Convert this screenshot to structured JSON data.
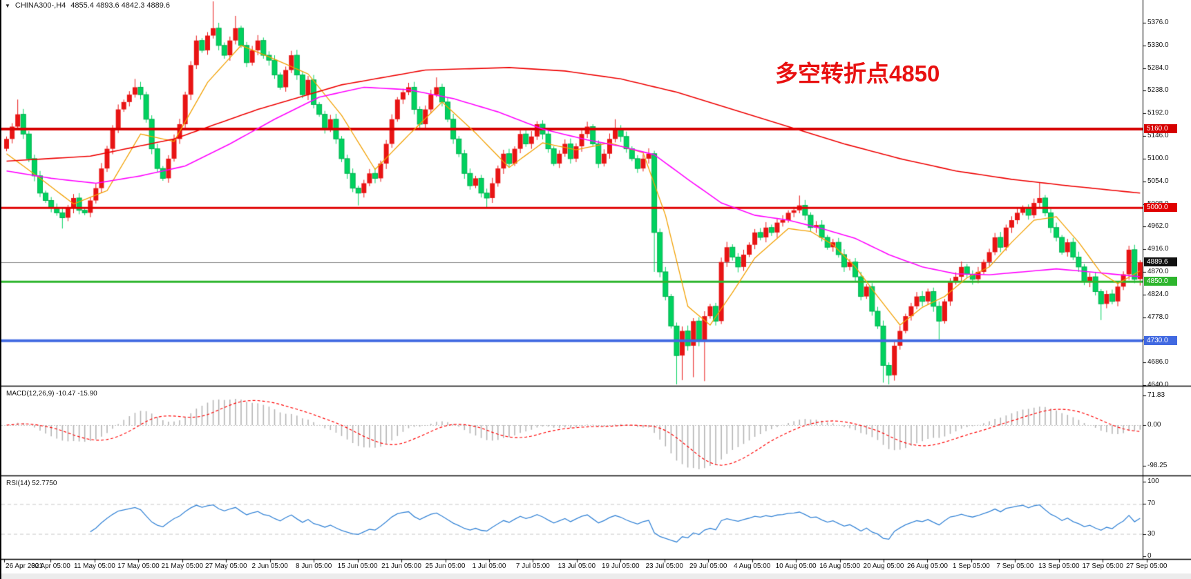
{
  "window": {
    "dropdown_icon": "▼",
    "symbol_header": "CHINA300-,H4",
    "ohlc_header": "4855.4 4893.6 4842.3 4889.6"
  },
  "annotation": {
    "text": "多空转折点4850",
    "color": "#e81010"
  },
  "main_chart": {
    "price_ticks": [
      "5376.0",
      "5330.0",
      "5284.0",
      "5238.0",
      "5192.0",
      "5146.0",
      "5100.0",
      "5054.0",
      "5008.0",
      "4962.0",
      "4916.0",
      "4870.0",
      "4824.0",
      "4778.0",
      "4732.0",
      "4686.0",
      "4640.0"
    ],
    "hlines": [
      {
        "label": "5160.0",
        "price": 5160.0,
        "line_color": "#d60000",
        "line_width": 4,
        "chip_bg": "#d60000"
      },
      {
        "label": "5000.0",
        "price": 5000.0,
        "line_color": "#e00000",
        "line_width": 3,
        "chip_bg": "#e00000"
      },
      {
        "label": "4889.6",
        "price": 4889.6,
        "line_color": "#808080",
        "line_width": 1,
        "chip_bg": "#101010"
      },
      {
        "label": "4850.0",
        "price": 4850.0,
        "line_color": "#2db52d",
        "line_width": 3,
        "chip_bg": "#2db52d"
      },
      {
        "label": "4730.0",
        "price": 4730.0,
        "line_color": "#4169e1",
        "line_width": 4,
        "chip_bg": "#4169e1"
      }
    ]
  },
  "macd": {
    "label": "MACD(12,26,9)",
    "values": "-10.47 -15.90",
    "axis": [
      "71.83",
      "0.00",
      "-98.25"
    ]
  },
  "rsi": {
    "label": "RSI(14)",
    "value": "52.7750",
    "axis": [
      "100",
      "70",
      "30",
      "0"
    ],
    "levels": [
      70,
      30
    ]
  },
  "time_axis": {
    "labels": [
      "26 Apr 2021",
      "30 Apr 05:00",
      "11 May 05:00",
      "17 May 05:00",
      "21 May 05:00",
      "27 May 05:00",
      "2 Jun 05:00",
      "8 Jun 05:00",
      "15 Jun 05:00",
      "21 Jun 05:00",
      "25 Jun 05:00",
      "1 Jul 05:00",
      "7 Jul 05:00",
      "13 Jul 05:00",
      "19 Jul 05:00",
      "23 Jul 05:00",
      "29 Jul 05:00",
      "4 Aug 05:00",
      "10 Aug 05:00",
      "16 Aug 05:00",
      "20 Aug 05:00",
      "26 Aug 05:00",
      "1 Sep 05:00",
      "7 Sep 05:00",
      "13 Sep 05:00",
      "17 Sep 05:00",
      "27 Sep 05:00"
    ]
  },
  "chart_data": {
    "type": "candlestick",
    "symbol": "CHINA300-",
    "timeframe": "H4",
    "title": "CHINA300-,H4 4855.4 4893.6 4842.3 4889.6",
    "candle_color_convention": "red = up, green = down",
    "price_range": {
      "min": 4640,
      "max": 5376,
      "tick_step": 46
    },
    "open_first": 5120,
    "closes": [
      5140,
      5165,
      5190,
      5150,
      5100,
      5065,
      5030,
      5015,
      5000,
      4990,
      4980,
      5000,
      5020,
      4995,
      4990,
      5015,
      5040,
      5080,
      5120,
      5160,
      5200,
      5215,
      5230,
      5245,
      5230,
      5180,
      5120,
      5080,
      5060,
      5100,
      5140,
      5170,
      5230,
      5290,
      5340,
      5320,
      5350,
      5365,
      5330,
      5310,
      5340,
      5365,
      5330,
      5295,
      5320,
      5340,
      5310,
      5300,
      5270,
      5245,
      5280,
      5310,
      5270,
      5230,
      5260,
      5210,
      5190,
      5160,
      5180,
      5140,
      5100,
      5070,
      5040,
      5030,
      5050,
      5070,
      5060,
      5090,
      5130,
      5180,
      5220,
      5235,
      5245,
      5200,
      5170,
      5200,
      5230,
      5245,
      5215,
      5180,
      5140,
      5110,
      5070,
      5045,
      5060,
      5030,
      5020,
      5050,
      5080,
      5110,
      5090,
      5120,
      5150,
      5130,
      5145,
      5170,
      5150,
      5120,
      5090,
      5110,
      5130,
      5100,
      5125,
      5150,
      5165,
      5130,
      5090,
      5110,
      5140,
      5160,
      5145,
      5120,
      5100,
      5080,
      5100,
      5110,
      4950,
      4870,
      4820,
      4760,
      4700,
      4750,
      4720,
      4770,
      4730,
      4780,
      4800,
      4770,
      4890,
      4920,
      4900,
      4880,
      4905,
      4925,
      4950,
      4940,
      4960,
      4950,
      4970,
      4975,
      4990,
      4995,
      5005,
      4985,
      4960,
      4965,
      4940,
      4920,
      4930,
      4905,
      4880,
      4890,
      4860,
      4820,
      4840,
      4790,
      4760,
      4680,
      4660,
      4720,
      4750,
      4780,
      4800,
      4820,
      4810,
      4830,
      4800,
      4770,
      4810,
      4850,
      4860,
      4880,
      4865,
      4855,
      4870,
      4890,
      4910,
      4940,
      4920,
      4960,
      4975,
      4990,
      5000,
      4985,
      5010,
      5020,
      4990,
      4960,
      4940,
      4910,
      4930,
      4900,
      4880,
      4850,
      4860,
      4830,
      4805,
      4825,
      4810,
      4840,
      4865,
      4915,
      4855,
      4889.6
    ],
    "wick_overrides": {
      "2": [
        5220,
        null
      ],
      "10": [
        null,
        4958
      ],
      "23": [
        5262,
        null
      ],
      "37": [
        5420,
        null
      ],
      "41": [
        5390,
        null
      ],
      "63": [
        null,
        5005
      ],
      "77": [
        5265,
        null
      ],
      "86": [
        null,
        5000
      ],
      "109": [
        5180,
        null
      ],
      "116": [
        null,
        4870
      ],
      "120": [
        null,
        4640
      ],
      "121": [
        null,
        4650
      ],
      "123": [
        null,
        4656
      ],
      "125": [
        null,
        4648
      ],
      "142": [
        5025,
        null
      ],
      "157": [
        null,
        4645
      ],
      "158": [
        null,
        4635
      ],
      "167": [
        null,
        4728
      ],
      "185": [
        5052,
        null
      ],
      "196": [
        null,
        4772
      ]
    },
    "last_candle": {
      "o": 4855.4,
      "h": 4893.6,
      "l": 4842.3,
      "c": 4889.6
    },
    "horizontal_levels": [
      5160.0,
      5000.0,
      4889.6,
      4850.0,
      4730.0
    ],
    "ma_lines": [
      {
        "name": "fast-ma",
        "color": "#f2a000",
        "points": [
          [
            0,
            5110
          ],
          [
            6,
            5060
          ],
          [
            12,
            5008
          ],
          [
            18,
            5035
          ],
          [
            24,
            5150
          ],
          [
            30,
            5135
          ],
          [
            36,
            5255
          ],
          [
            42,
            5330
          ],
          [
            48,
            5302
          ],
          [
            54,
            5272
          ],
          [
            60,
            5188
          ],
          [
            66,
            5078
          ],
          [
            72,
            5148
          ],
          [
            78,
            5215
          ],
          [
            84,
            5152
          ],
          [
            90,
            5082
          ],
          [
            96,
            5132
          ],
          [
            102,
            5118
          ],
          [
            108,
            5132
          ],
          [
            114,
            5112
          ],
          [
            118,
            4985
          ],
          [
            122,
            4800
          ],
          [
            126,
            4762
          ],
          [
            130,
            4828
          ],
          [
            134,
            4898
          ],
          [
            140,
            4958
          ],
          [
            144,
            4952
          ],
          [
            148,
            4925
          ],
          [
            152,
            4880
          ],
          [
            156,
            4820
          ],
          [
            160,
            4762
          ],
          [
            164,
            4798
          ],
          [
            168,
            4820
          ],
          [
            172,
            4858
          ],
          [
            176,
            4880
          ],
          [
            180,
            4930
          ],
          [
            184,
            4975
          ],
          [
            188,
            4982
          ],
          [
            192,
            4930
          ],
          [
            196,
            4868
          ],
          [
            199,
            4846
          ],
          [
            203,
            4872
          ]
        ]
      },
      {
        "name": "mid-ma",
        "color": "#ff00ff",
        "points": [
          [
            0,
            5075
          ],
          [
            8,
            5060
          ],
          [
            16,
            5050
          ],
          [
            24,
            5065
          ],
          [
            32,
            5085
          ],
          [
            40,
            5130
          ],
          [
            48,
            5180
          ],
          [
            56,
            5225
          ],
          [
            64,
            5245
          ],
          [
            72,
            5240
          ],
          [
            80,
            5222
          ],
          [
            88,
            5195
          ],
          [
            96,
            5160
          ],
          [
            104,
            5138
          ],
          [
            110,
            5125
          ],
          [
            116,
            5108
          ],
          [
            122,
            5058
          ],
          [
            128,
            5010
          ],
          [
            134,
            4985
          ],
          [
            140,
            4975
          ],
          [
            146,
            4958
          ],
          [
            152,
            4938
          ],
          [
            158,
            4905
          ],
          [
            164,
            4880
          ],
          [
            170,
            4866
          ],
          [
            176,
            4864
          ],
          [
            182,
            4870
          ],
          [
            188,
            4876
          ],
          [
            194,
            4870
          ],
          [
            203,
            4860
          ]
        ]
      },
      {
        "name": "slow-ma",
        "color": "#ee0000",
        "points": [
          [
            0,
            5095
          ],
          [
            15,
            5105
          ],
          [
            30,
            5140
          ],
          [
            45,
            5200
          ],
          [
            60,
            5250
          ],
          [
            75,
            5280
          ],
          [
            90,
            5285
          ],
          [
            100,
            5278
          ],
          [
            110,
            5262
          ],
          [
            120,
            5235
          ],
          [
            130,
            5200
          ],
          [
            140,
            5165
          ],
          [
            150,
            5130
          ],
          [
            160,
            5100
          ],
          [
            170,
            5075
          ],
          [
            180,
            5058
          ],
          [
            190,
            5045
          ],
          [
            203,
            5030
          ]
        ]
      }
    ],
    "macd": {
      "params": [
        12,
        26,
        9
      ],
      "current_main": -10.47,
      "current_signal": -15.9,
      "axis_labels": [
        71.83,
        0.0,
        -98.25
      ]
    },
    "rsi": {
      "period": 14,
      "current": 52.775,
      "levels": [
        70,
        30
      ],
      "axis_labels": [
        100,
        70,
        30,
        0
      ]
    }
  },
  "colors": {
    "up_candle": "#e81414",
    "down_candle": "#00d25f",
    "down_candle_border": "#00b050",
    "macd_histogram": "#b4b4b4",
    "macd_signal": "#ff0000",
    "rsi_line": "#3584d6",
    "level_dashed": "#c8c8c8",
    "separator": "#000000"
  }
}
